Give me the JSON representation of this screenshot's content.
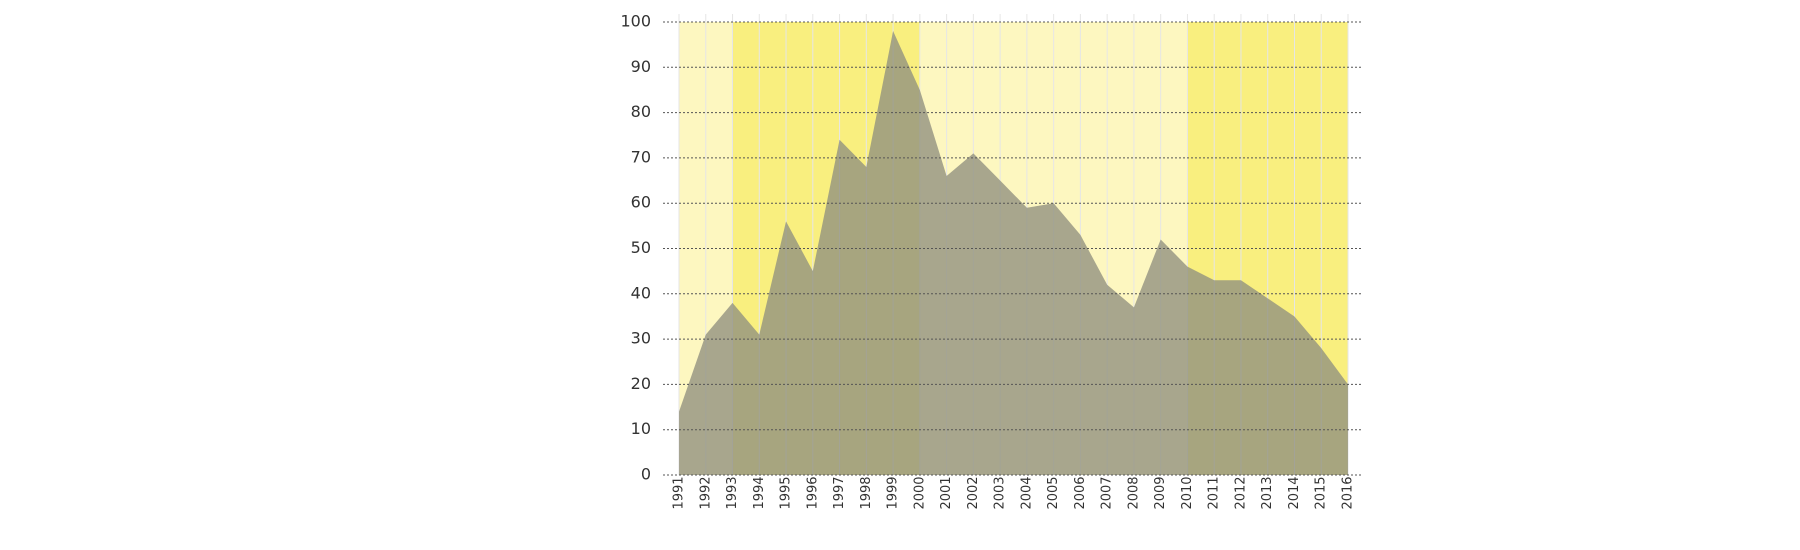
{
  "chart_data": {
    "type": "area",
    "title": "",
    "xlabel": "",
    "ylabel": "",
    "x": [
      "1991",
      "1992",
      "1993",
      "1994",
      "1995",
      "1996",
      "1997",
      "1998",
      "1999",
      "2000",
      "2001",
      "2002",
      "2003",
      "2004",
      "2005",
      "2006",
      "2007",
      "2008",
      "2009",
      "2010",
      "2011",
      "2012",
      "2013",
      "2014",
      "2015",
      "2016"
    ],
    "series": [
      {
        "values": [
          14,
          31,
          38,
          31,
          56,
          45,
          74,
          68,
          98,
          85,
          66,
          71,
          65,
          59,
          60,
          53,
          42,
          37,
          52,
          46,
          43,
          43,
          39,
          35,
          28,
          20
        ]
      }
    ],
    "ylim": [
      0,
      100
    ],
    "yticks": [
      0,
      10,
      20,
      30,
      40,
      50,
      60,
      70,
      80,
      90,
      100
    ],
    "grid": true,
    "legend": "none",
    "shaded_periods": [
      {
        "start": "1991",
        "end": "1993",
        "color": "#fdf7c0"
      },
      {
        "start": "1993",
        "end": "2000",
        "color": "#f9ef7f"
      },
      {
        "start": "2000",
        "end": "2010",
        "color": "#fdf7c0"
      },
      {
        "start": "2010",
        "end": "2016",
        "color": "#f9ef7f"
      }
    ],
    "colors": {
      "area": "#8f8f7f",
      "grid": "#555555",
      "vline": "#e6e6e6"
    }
  }
}
